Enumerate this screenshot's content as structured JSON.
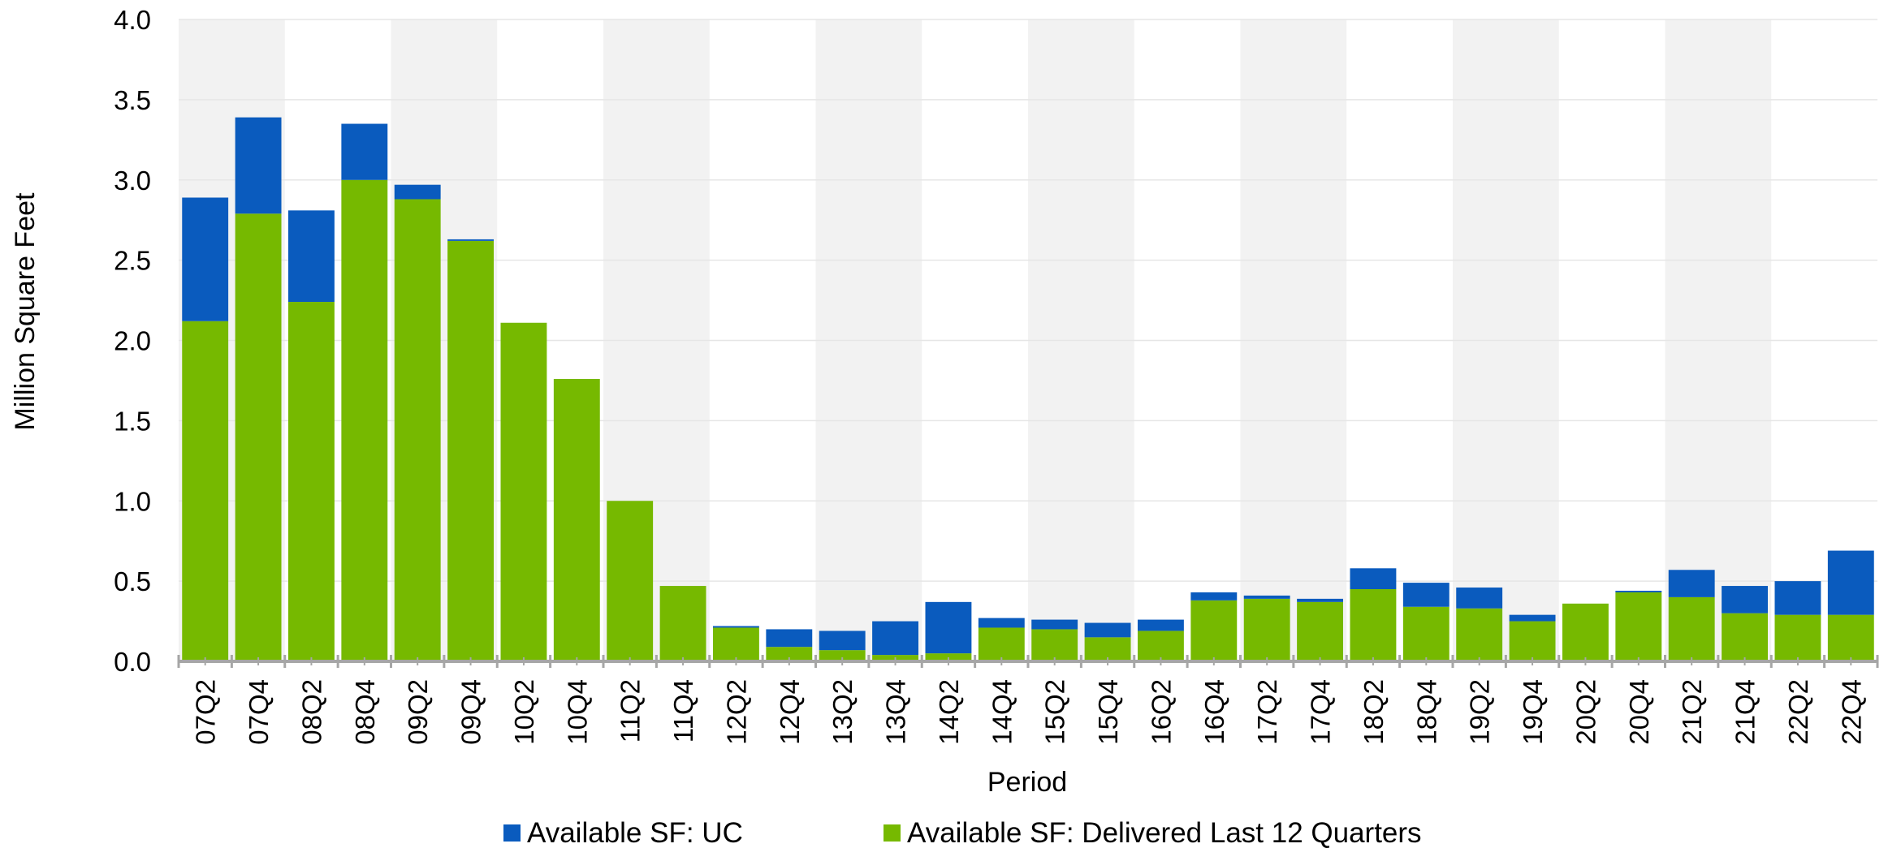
{
  "chart_data": {
    "type": "bar",
    "stacked": true,
    "title": "",
    "xlabel": "Period",
    "ylabel": "Million Square Feet",
    "ylim": [
      0,
      4.0
    ],
    "yticks": [
      "0.0",
      "0.5",
      "1.0",
      "1.5",
      "2.0",
      "2.5",
      "3.0",
      "3.5",
      "4.0"
    ],
    "grid": true,
    "legend_position": "bottom",
    "categories": [
      "07Q2",
      "07Q4",
      "08Q2",
      "08Q4",
      "09Q2",
      "09Q4",
      "10Q2",
      "10Q4",
      "11Q2",
      "11Q4",
      "12Q2",
      "12Q4",
      "13Q2",
      "13Q4",
      "14Q2",
      "14Q4",
      "15Q2",
      "15Q4",
      "16Q2",
      "16Q4",
      "17Q2",
      "17Q4",
      "18Q2",
      "18Q4",
      "19Q2",
      "19Q4",
      "20Q2",
      "20Q4",
      "21Q2",
      "21Q4",
      "22Q2",
      "22Q4"
    ],
    "series": [
      {
        "name": "Available SF: Delivered Last 12 Quarters",
        "color": "#76B900",
        "values": [
          2.12,
          2.79,
          2.24,
          3.0,
          2.88,
          2.62,
          2.11,
          1.76,
          1.0,
          0.47,
          0.21,
          0.09,
          0.07,
          0.04,
          0.05,
          0.21,
          0.2,
          0.15,
          0.19,
          0.38,
          0.39,
          0.37,
          0.45,
          0.34,
          0.33,
          0.25,
          0.36,
          0.43,
          0.4,
          0.3,
          0.29,
          0.29
        ]
      },
      {
        "name": "Available SF: UC",
        "color": "#0A5BBE",
        "values": [
          0.77,
          0.6,
          0.57,
          0.35,
          0.09,
          0.01,
          0.0,
          0.0,
          0.0,
          0.0,
          0.01,
          0.11,
          0.12,
          0.21,
          0.32,
          0.06,
          0.06,
          0.09,
          0.07,
          0.05,
          0.02,
          0.02,
          0.13,
          0.15,
          0.13,
          0.04,
          0.0,
          0.01,
          0.17,
          0.17,
          0.21,
          0.4
        ]
      }
    ],
    "legend": [
      {
        "label": "Available SF: UC",
        "color": "#0A5BBE"
      },
      {
        "label": "Available SF: Delivered Last 12 Quarters",
        "color": "#76B900"
      }
    ],
    "band_color": "#F2F2F2",
    "grid_color": "#E6E6E6",
    "axis_color": "#A6A6A6"
  }
}
